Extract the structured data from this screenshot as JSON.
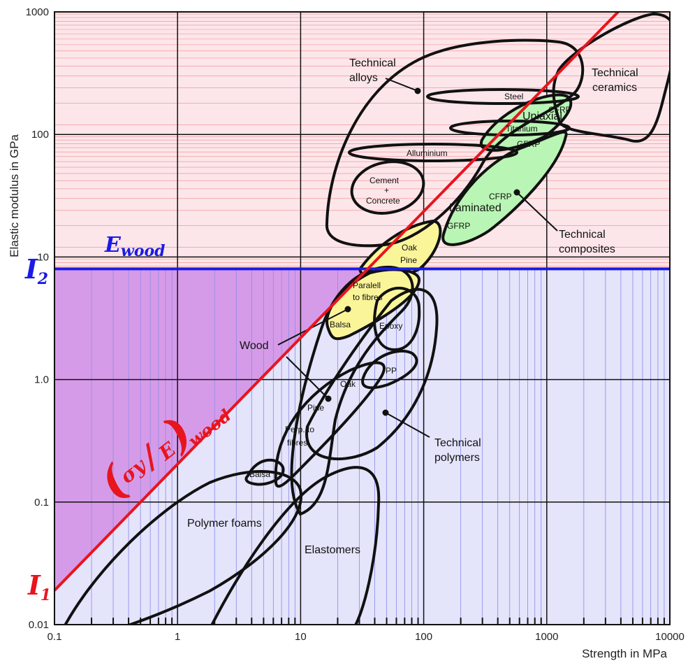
{
  "chart_data": {
    "type": "scatter",
    "xlabel": "Strength in MPa",
    "ylabel": "Elastic modulus in GPa",
    "xscale": "log",
    "yscale": "log",
    "xlim": [
      0.1,
      10000
    ],
    "ylim": [
      0.01,
      1000
    ],
    "x_ticks": [
      "0.1",
      "1",
      "10",
      "100",
      "1000",
      "10000"
    ],
    "y_ticks": [
      "0.01",
      "0.1",
      "1.0",
      "10",
      "100",
      "1000"
    ],
    "grid": true,
    "reference_lines": {
      "horizontal": {
        "label": "E_wood",
        "y": 8,
        "color": "#1a1ae6"
      },
      "diagonal": {
        "label": "(σy / E)wood",
        "points": [
          [
            0.1,
            0.019
          ],
          [
            3800,
            1000
          ]
        ],
        "color": "#e8141e"
      }
    },
    "markers": {
      "I1": "I",
      "I1_sub": "1",
      "I2": "I",
      "I2_sub": "2"
    },
    "ewood_label": "E",
    "ewood_sub": "wood",
    "ratio_sigma": "σy",
    "ratio_E": "E",
    "ratio_sub": "wood",
    "region_labels": {
      "technical_alloys": [
        "Technical",
        "alloys"
      ],
      "technical_ceramics": [
        "Technical",
        "ceramics"
      ],
      "steel": "Steel",
      "cfrp_top": "CFRP",
      "uniaxial": "Uniaxial",
      "titanium": "Titanium",
      "gfrp_top": "GFRP",
      "alluminium": "Alluminium",
      "cement": [
        "Cement",
        "+",
        "Concrete"
      ],
      "cfrp_lam": "CFRP",
      "laminated": "Laminated",
      "gfrp_lam": "GFRP",
      "technical_composites": [
        "Technical",
        "composites"
      ],
      "oak_pine_top": [
        "Oak",
        "Pine"
      ],
      "paralell": [
        "Paralell",
        "to fibres"
      ],
      "balsa_top": "Balsa",
      "epoxy": "Epoxy",
      "wood": "Wood",
      "pp": "PP",
      "oak": "Oak",
      "pine": "Pine",
      "perp": [
        "Perp. to",
        "fibres"
      ],
      "balsa_low": "Balsa",
      "technical_polymers": [
        "Technical",
        "polymers"
      ],
      "polymer_foams": "Polymer foams",
      "elastomers": "Elastomers"
    },
    "fill_colors": {
      "pink_zone": "#fce6ea",
      "purple_zone": "#d69be8",
      "lightblue_zone": "#e4e4fb",
      "green": "#b9f5b4",
      "yellow": "#fbf59a"
    }
  }
}
